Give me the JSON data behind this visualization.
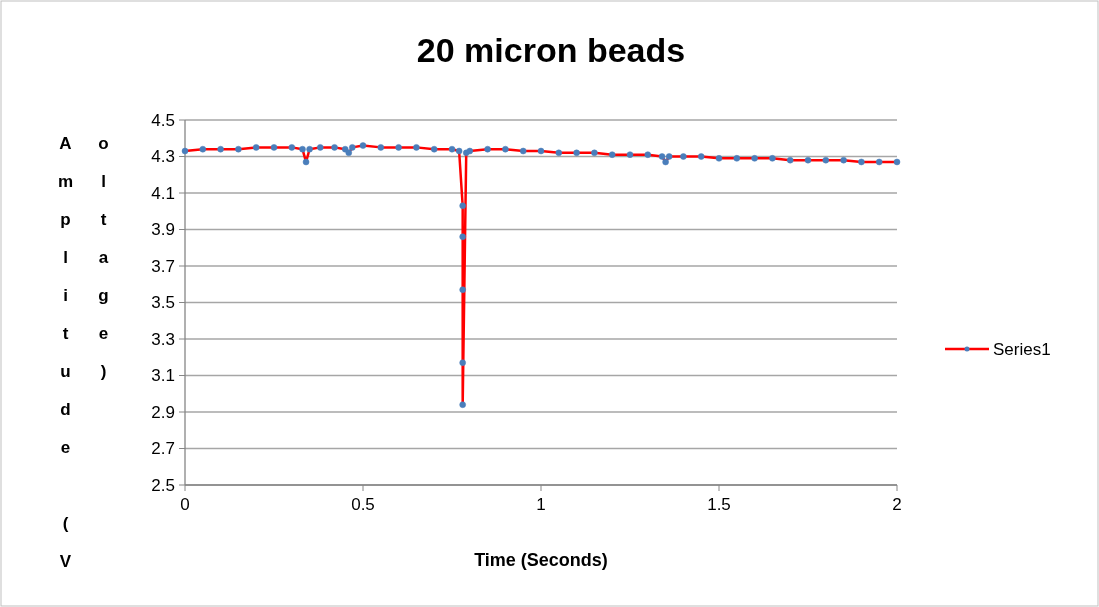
{
  "chart_data": {
    "type": "line",
    "title": "20 micron beads",
    "xlabel": "Time (Seconds)",
    "ylabel": "Amplitude (Voltage)",
    "xlim": [
      0,
      2
    ],
    "xticks": [
      0,
      0.5,
      1,
      1.5,
      2
    ],
    "ylim": [
      2.5,
      4.5
    ],
    "yticks": [
      {
        "value": 2.5,
        "label": "2.5"
      },
      {
        "value": 2.7,
        "label": "2.7"
      },
      {
        "value": 2.9,
        "label": "2.9"
      },
      {
        "value": 3.1,
        "label": "3.1"
      },
      {
        "value": 3.3,
        "label": "3.3"
      },
      {
        "value": 3.5,
        "label": "3.5"
      },
      {
        "value": 3.7,
        "label": "3.7"
      },
      {
        "value": 3.9,
        "label": "3.9"
      },
      {
        "value": 4.1,
        "label": "4.1"
      },
      {
        "value": 4.3,
        "label": "4.3"
      },
      {
        "value": 4.5,
        "label": "4.5"
      }
    ],
    "grid": "y",
    "legend": "right",
    "marker": "circle",
    "line_style": "solid",
    "x": [
      0,
      0.05,
      0.1,
      0.15,
      0.2,
      0.25,
      0.3,
      0.33,
      0.34,
      0.35,
      0.38,
      0.42,
      0.45,
      0.46,
      0.47,
      0.5,
      0.55,
      0.6,
      0.65,
      0.7,
      0.75,
      0.77,
      0.78,
      0.78,
      0.78,
      0.78,
      0.78,
      0.79,
      0.8,
      0.85,
      0.9,
      0.95,
      1.0,
      1.05,
      1.1,
      1.15,
      1.2,
      1.25,
      1.3,
      1.34,
      1.35,
      1.36,
      1.4,
      1.45,
      1.5,
      1.55,
      1.6,
      1.65,
      1.7,
      1.75,
      1.8,
      1.85,
      1.9,
      1.95,
      2.0
    ],
    "series": [
      {
        "name": "Series1",
        "color": "#ff0000",
        "colors": [
          "#4a7ebb",
          "#4a7ebb",
          "#4a7ebb",
          "#4a7ebb",
          "#4a7ebb",
          "#4a7ebb",
          "#4a7ebb",
          "#4a7ebb",
          "#4a7ebb",
          "#4a7ebb",
          "#4a7ebb",
          "#4a7ebb",
          "#4a7ebb",
          "#4a7ebb",
          "#4a7ebb",
          "#4a7ebb",
          "#4a7ebb",
          "#4a7ebb",
          "#4a7ebb",
          "#4a7ebb",
          "#4a7ebb",
          "#4a7ebb",
          "#4a7ebb",
          "#4a7ebb",
          "#4a7ebb",
          "#4a7ebb",
          "#4a7ebb",
          "#4a7ebb",
          "#4a7ebb",
          "#4a7ebb",
          "#4a7ebb",
          "#4a7ebb",
          "#4a7ebb",
          "#4a7ebb",
          "#4a7ebb",
          "#4a7ebb",
          "#4a7ebb",
          "#4a7ebb",
          "#4a7ebb",
          "#4a7ebb",
          "#4a7ebb",
          "#4a7ebb",
          "#4a7ebb",
          "#4a7ebb",
          "#4a7ebb",
          "#4a7ebb",
          "#4a7ebb",
          "#4a7ebb",
          "#4a7ebb",
          "#4a7ebb",
          "#4a7ebb",
          "#4a7ebb",
          "#4a7ebb",
          "#4a7ebb",
          "#4a7ebb"
        ],
        "values": [
          4.33,
          4.34,
          4.34,
          4.34,
          4.35,
          4.35,
          4.35,
          4.34,
          4.27,
          4.34,
          4.35,
          4.35,
          4.34,
          4.32,
          4.35,
          4.36,
          4.35,
          4.35,
          4.35,
          4.34,
          4.34,
          4.33,
          4.03,
          3.86,
          3.57,
          3.17,
          2.94,
          4.32,
          4.33,
          4.34,
          4.34,
          4.33,
          4.33,
          4.32,
          4.32,
          4.32,
          4.31,
          4.31,
          4.31,
          4.3,
          4.27,
          4.3,
          4.3,
          4.3,
          4.29,
          4.29,
          4.29,
          4.29,
          4.28,
          4.28,
          4.28,
          4.28,
          4.27,
          4.27,
          4.27
        ]
      }
    ]
  }
}
